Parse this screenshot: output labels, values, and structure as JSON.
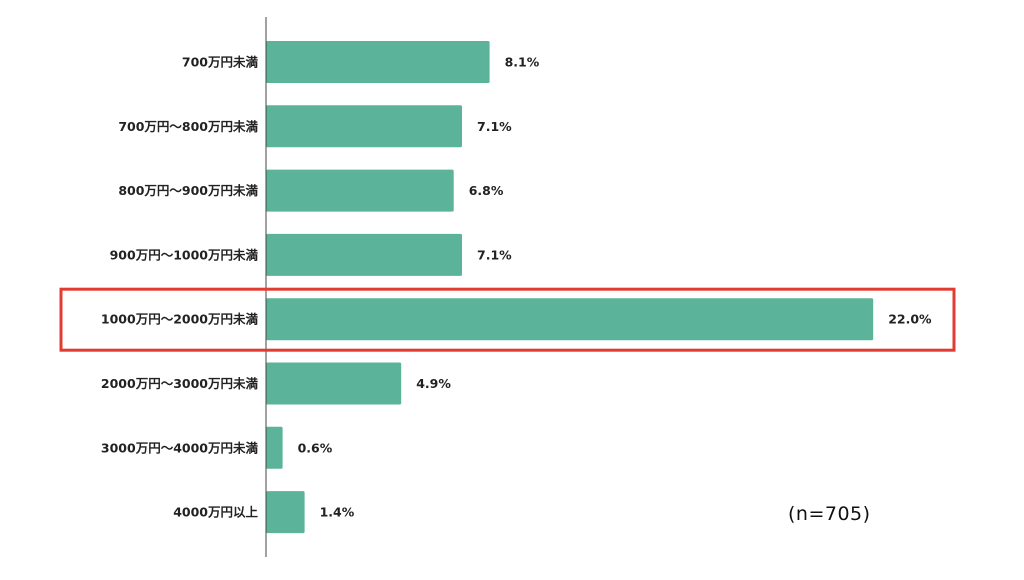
{
  "chart_data": {
    "type": "bar",
    "orientation": "horizontal",
    "categories": [
      "700万円未満",
      "700万円～800万円未満",
      "800万円～900万円未満",
      "900万円～1000万円未満",
      "1000万円～2000万円未満",
      "2000万円～3000万円未満",
      "3000万円～4000万円未満",
      "4000万円以上"
    ],
    "values": [
      8.1,
      7.1,
      6.8,
      7.1,
      22.0,
      4.9,
      0.6,
      1.4
    ],
    "value_labels": [
      "8.1%",
      "7.1%",
      "6.8%",
      "7.1%",
      "22.0%",
      "4.9%",
      "0.6%",
      "1.4%"
    ],
    "unit": "%",
    "xlim": [
      0,
      24
    ],
    "highlighted_category": "1000万円～2000万円未満",
    "grid": false,
    "title": "",
    "xlabel": "",
    "ylabel": ""
  },
  "note": "(n=705)",
  "colors": {
    "bar": "#5bb39a",
    "highlight_border": "#e03c31",
    "axis": "#444444",
    "text": "#222222"
  }
}
